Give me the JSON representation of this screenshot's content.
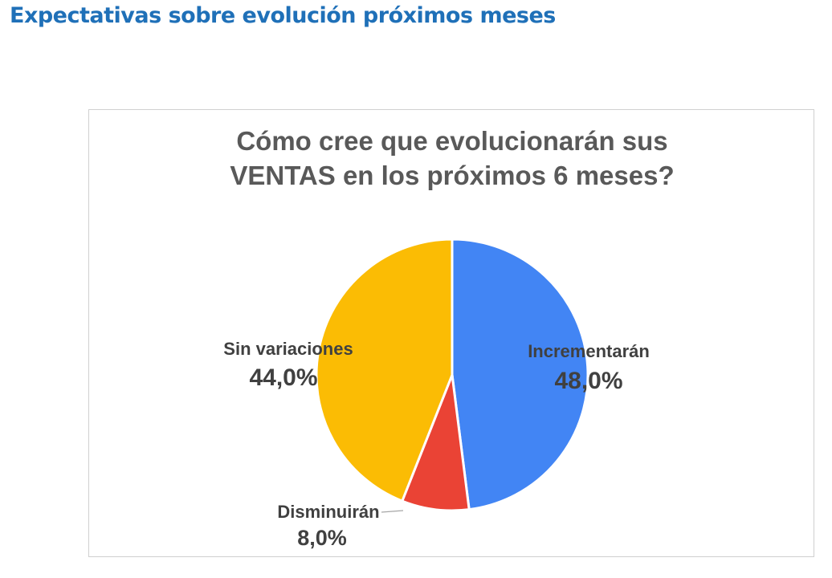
{
  "page": {
    "title": "Expectativas sobre evolución próximos meses"
  },
  "chart_data": {
    "type": "pie",
    "title_lines": [
      "Cómo cree que evolucionarán sus",
      "VENTAS en los próximos 6 meses?"
    ],
    "slices": [
      {
        "name": "Incrementarán",
        "value": 48.0,
        "label": "48,0%",
        "color": "#4285f4"
      },
      {
        "name": "Disminuirán",
        "value": 8.0,
        "label": "8,0%",
        "color": "#ea4335"
      },
      {
        "name": "Sin variaciones",
        "value": 44.0,
        "label": "44,0%",
        "color": "#fbbc04"
      }
    ],
    "start_angle": "12 o'clock",
    "direction": "clockwise",
    "legend": "none"
  }
}
